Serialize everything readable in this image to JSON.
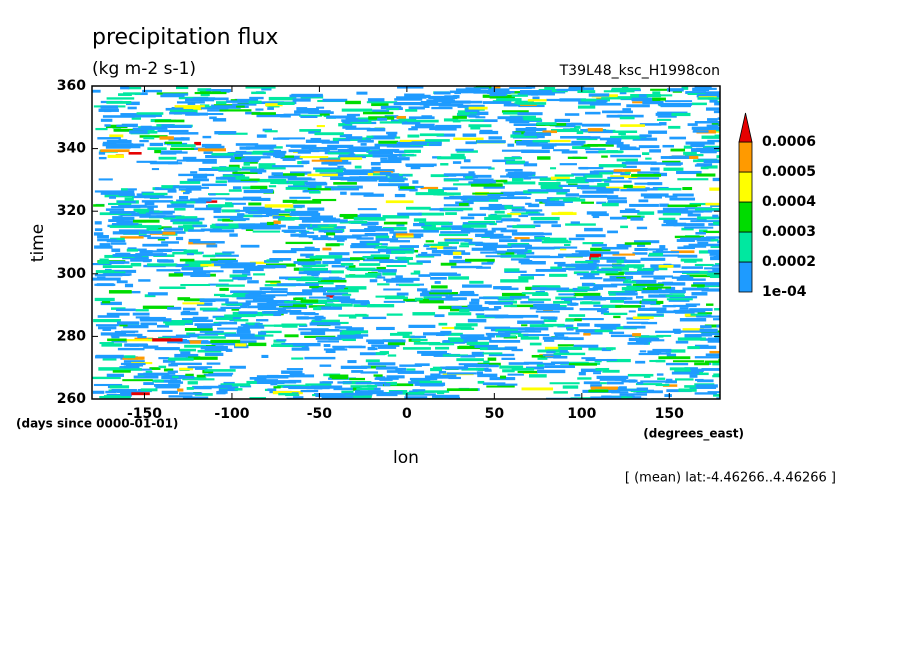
{
  "chart_data": {
    "type": "hovmoller",
    "title": "precipitation flux",
    "units": "(kg m-2 s-1)",
    "run_label": "T39L48_ksc_H1998con",
    "x_label": "lon",
    "x_units": "(degrees_east)",
    "y_label": "time",
    "y_units": "(days since 0000-01-01)",
    "note": "[ (mean) lat:-4.46266..4.46266 ]",
    "xlim": [
      -180,
      179
    ],
    "xticks": [
      -150,
      -100,
      -50,
      0,
      50,
      100,
      150
    ],
    "ylim": [
      260,
      360
    ],
    "yticks": [
      260,
      280,
      300,
      320,
      340,
      360
    ],
    "colorbar": {
      "levels": [
        {
          "value": 0.0001,
          "label": "1e-04"
        },
        0.0002,
        0.0003,
        0.0004,
        0.0005,
        0.0006
      ],
      "colors": [
        "#1e9bff",
        "#00e8a0",
        "#00dc00",
        "#ffff00",
        "#ff9a00",
        "#e60000"
      ]
    }
  }
}
